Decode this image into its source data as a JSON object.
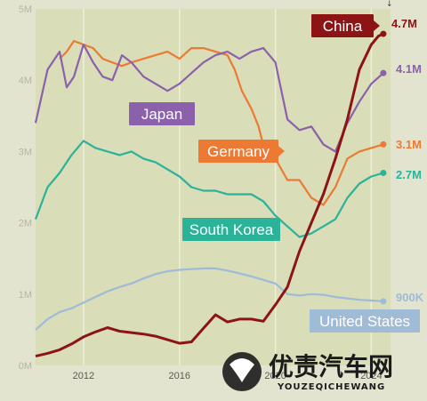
{
  "chart_data": {
    "type": "line",
    "title": "",
    "xlabel": "",
    "ylabel": "",
    "x_ticks": [
      "2012",
      "2016",
      "2020",
      "2024"
    ],
    "y_ticks": [
      "0M",
      "1M",
      "2M",
      "3M",
      "4M",
      "5M"
    ],
    "ylim": [
      0,
      5000000
    ],
    "xlim": [
      2010.0,
      2024.8
    ],
    "grid": "vertical",
    "end_value_labels": true,
    "series": [
      {
        "name": "China",
        "color": "#8c1414",
        "end_label": "4.7M",
        "x": [
          2010.0,
          2010.5,
          2011.0,
          2011.5,
          2012.0,
          2012.5,
          2013.0,
          2013.5,
          2014.0,
          2014.5,
          2015.0,
          2015.5,
          2016.0,
          2016.5,
          2017.0,
          2017.5,
          2018.0,
          2018.5,
          2019.0,
          2019.5,
          2020.0,
          2020.5,
          2021.0,
          2021.5,
          2022.0,
          2022.5,
          2023.0,
          2023.5,
          2024.0,
          2024.3,
          2024.5
        ],
        "values": [
          130000,
          170000,
          220000,
          300000,
          400000,
          470000,
          530000,
          480000,
          460000,
          440000,
          410000,
          360000,
          310000,
          330000,
          520000,
          710000,
          610000,
          650000,
          650000,
          620000,
          850000,
          1100000,
          1600000,
          2000000,
          2400000,
          2900000,
          3450000,
          4150000,
          4500000,
          4620000,
          4650000
        ]
      },
      {
        "name": "Japan",
        "color": "#8b61ab",
        "end_label": "4.1M",
        "x": [
          2010.0,
          2010.5,
          2011.0,
          2011.3,
          2011.6,
          2012.0,
          2012.4,
          2012.8,
          2013.2,
          2013.6,
          2014.0,
          2014.5,
          2015.0,
          2015.5,
          2016.0,
          2016.5,
          2017.0,
          2017.5,
          2018.0,
          2018.5,
          2019.0,
          2019.5,
          2020.0,
          2020.5,
          2021.0,
          2021.5,
          2022.0,
          2022.5,
          2023.0,
          2023.5,
          2024.0,
          2024.5
        ],
        "values": [
          3400000,
          4150000,
          4400000,
          3900000,
          4050000,
          4500000,
          4250000,
          4050000,
          4000000,
          4350000,
          4250000,
          4050000,
          3950000,
          3850000,
          3950000,
          4100000,
          4250000,
          4350000,
          4400000,
          4300000,
          4400000,
          4450000,
          4250000,
          3450000,
          3300000,
          3350000,
          3100000,
          3000000,
          3400000,
          3700000,
          3950000,
          4100000
        ]
      },
      {
        "name": "Germany",
        "color": "#ec7a34",
        "end_label": "3.1M",
        "x": [
          2011.0,
          2011.3,
          2011.6,
          2012.0,
          2012.4,
          2012.8,
          2013.2,
          2013.6,
          2014.0,
          2014.5,
          2015.0,
          2015.5,
          2016.0,
          2016.5,
          2017.0,
          2017.5,
          2018.0,
          2018.3,
          2018.6,
          2019.0,
          2019.3,
          2019.6,
          2020.0,
          2020.5,
          2021.0,
          2021.5,
          2022.0,
          2022.5,
          2023.0,
          2023.5,
          2024.0,
          2024.5
        ],
        "values": [
          4300000,
          4400000,
          4550000,
          4500000,
          4450000,
          4300000,
          4250000,
          4200000,
          4250000,
          4300000,
          4350000,
          4400000,
          4300000,
          4450000,
          4450000,
          4400000,
          4350000,
          4150000,
          3850000,
          3600000,
          3350000,
          2950000,
          2900000,
          2600000,
          2600000,
          2350000,
          2250000,
          2500000,
          2900000,
          3000000,
          3050000,
          3100000
        ]
      },
      {
        "name": "South Korea",
        "color": "#2bb39a",
        "end_label": "2.7M",
        "x": [
          2010.0,
          2010.5,
          2011.0,
          2011.5,
          2012.0,
          2012.5,
          2013.0,
          2013.5,
          2014.0,
          2014.5,
          2015.0,
          2015.5,
          2016.0,
          2016.5,
          2017.0,
          2017.5,
          2018.0,
          2018.5,
          2019.0,
          2019.5,
          2020.0,
          2020.5,
          2021.0,
          2021.5,
          2022.0,
          2022.5,
          2023.0,
          2023.5,
          2024.0,
          2024.5
        ],
        "values": [
          2050000,
          2500000,
          2700000,
          2950000,
          3150000,
          3050000,
          3000000,
          2950000,
          3000000,
          2900000,
          2850000,
          2750000,
          2650000,
          2500000,
          2450000,
          2450000,
          2400000,
          2400000,
          2400000,
          2300000,
          2100000,
          1950000,
          1800000,
          1850000,
          1950000,
          2050000,
          2350000,
          2550000,
          2650000,
          2700000
        ]
      },
      {
        "name": "United States",
        "color": "#9fbbd6",
        "end_label": "900K",
        "x": [
          2010.0,
          2010.5,
          2011.0,
          2011.5,
          2012.0,
          2012.5,
          2013.0,
          2013.5,
          2014.0,
          2014.5,
          2015.0,
          2015.5,
          2016.0,
          2016.5,
          2017.0,
          2017.5,
          2018.0,
          2018.5,
          2019.0,
          2019.5,
          2020.0,
          2020.5,
          2021.0,
          2021.5,
          2022.0,
          2022.5,
          2023.0,
          2023.5,
          2024.0,
          2024.5
        ],
        "values": [
          500000,
          650000,
          750000,
          800000,
          880000,
          960000,
          1040000,
          1100000,
          1150000,
          1220000,
          1280000,
          1320000,
          1340000,
          1350000,
          1360000,
          1360000,
          1330000,
          1290000,
          1250000,
          1200000,
          1150000,
          1000000,
          980000,
          1000000,
          990000,
          960000,
          940000,
          920000,
          910000,
          900000
        ]
      }
    ]
  },
  "watermark": {
    "text": "优责汽车网",
    "sub": "YOUZEQICHEWANG"
  }
}
